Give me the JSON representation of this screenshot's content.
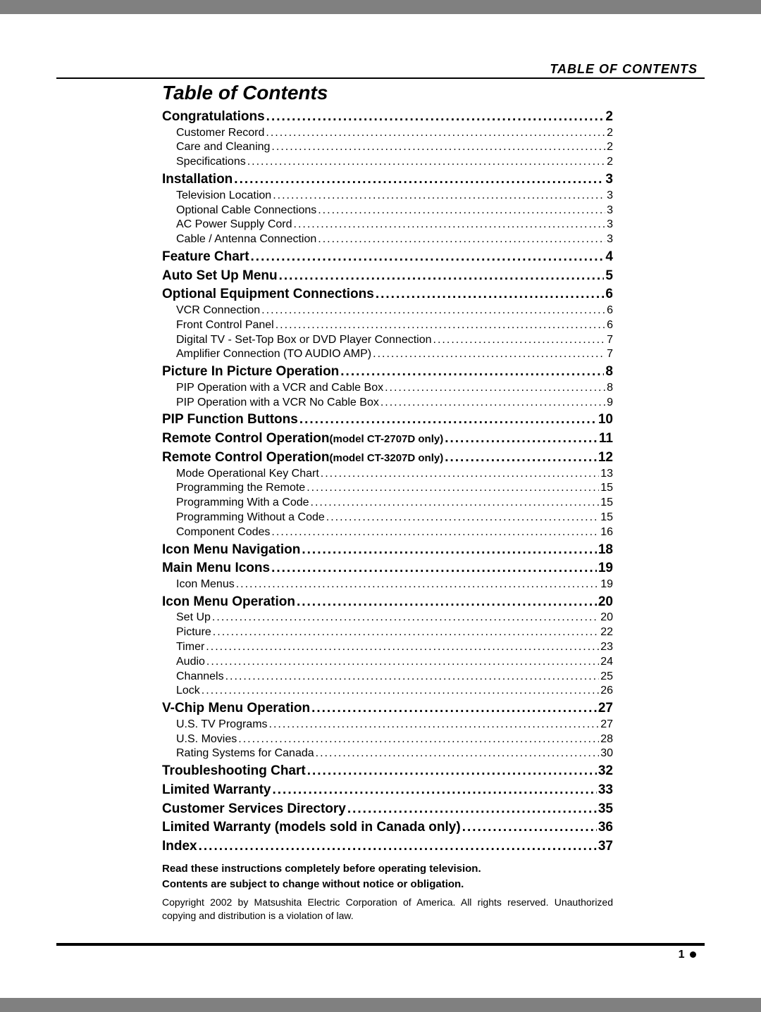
{
  "header_right": "TABLE OF CONTENTS",
  "title": "Table of Contents",
  "entries": [
    {
      "type": "sec",
      "label": "Congratulations",
      "page": "2"
    },
    {
      "type": "sub",
      "label": "Customer Record",
      "page": "2"
    },
    {
      "type": "sub",
      "label": "Care and Cleaning",
      "page": "2"
    },
    {
      "type": "sub",
      "label": "Specifications",
      "page": "2"
    },
    {
      "type": "sec",
      "label": "Installation",
      "page": "3"
    },
    {
      "type": "sub",
      "label": "Television Location",
      "page": "3"
    },
    {
      "type": "sub",
      "label": "Optional Cable Connections",
      "page": "3"
    },
    {
      "type": "sub",
      "label": "AC Power Supply Cord",
      "page": "3"
    },
    {
      "type": "sub",
      "label": "Cable / Antenna Connection",
      "page": "3"
    },
    {
      "type": "sec",
      "label": "Feature Chart",
      "page": "4"
    },
    {
      "type": "sec",
      "label": "Auto Set Up Menu",
      "page": "5"
    },
    {
      "type": "sec",
      "label": "Optional Equipment Connections",
      "page": "6"
    },
    {
      "type": "sub",
      "label": "VCR Connection",
      "page": "6"
    },
    {
      "type": "sub",
      "label": "Front Control Panel",
      "page": "6"
    },
    {
      "type": "sub",
      "label": "Digital TV - Set-Top Box or DVD Player Connection",
      "page": "7"
    },
    {
      "type": "sub",
      "label": "Amplifier Connection (TO AUDIO AMP)",
      "page": "7"
    },
    {
      "type": "sec",
      "label": "Picture In Picture Operation",
      "page": "8"
    },
    {
      "type": "sub",
      "label": "PIP Operation with a VCR and Cable Box",
      "page": "8"
    },
    {
      "type": "sub",
      "label": "PIP Operation with a VCR No Cable Box",
      "page": "9"
    },
    {
      "type": "sec",
      "label": "PIP Function Buttons",
      "page": "10"
    },
    {
      "type": "sec",
      "label": "Remote Control Operation",
      "note": "(model CT-2707D only)",
      "page": "11"
    },
    {
      "type": "sec",
      "label": "Remote Control Operation",
      "note": "(model CT-3207D only)",
      "page": "12"
    },
    {
      "type": "sub",
      "label": "Mode Operational Key Chart",
      "page": "13"
    },
    {
      "type": "sub",
      "label": "Programming the Remote",
      "page": "15"
    },
    {
      "type": "sub",
      "label": "Programming With a Code",
      "page": "15"
    },
    {
      "type": "sub",
      "label": "Programming Without a Code",
      "page": "15"
    },
    {
      "type": "sub",
      "label": "Component Codes",
      "page": "16"
    },
    {
      "type": "sec",
      "label": "Icon Menu Navigation",
      "page": "18"
    },
    {
      "type": "sec",
      "label": "Main Menu Icons",
      "page": "19"
    },
    {
      "type": "sub",
      "label": "Icon Menus",
      "page": "19"
    },
    {
      "type": "sec",
      "label": "Icon Menu Operation",
      "page": "20"
    },
    {
      "type": "sub",
      "label": "Set Up",
      "page": "20"
    },
    {
      "type": "sub",
      "label": "Picture",
      "page": "22"
    },
    {
      "type": "sub",
      "label": "Timer",
      "page": "23"
    },
    {
      "type": "sub",
      "label": "Audio",
      "page": "24"
    },
    {
      "type": "sub",
      "label": "Channels",
      "page": "25"
    },
    {
      "type": "sub",
      "label": "Lock",
      "page": "26"
    },
    {
      "type": "sec",
      "label": "V-Chip Menu Operation",
      "page": "27"
    },
    {
      "type": "sub",
      "label": "U.S. TV Programs",
      "page": "27"
    },
    {
      "type": "sub",
      "label": "U.S. Movies",
      "page": "28"
    },
    {
      "type": "sub",
      "label": "Rating Systems for Canada",
      "page": "30"
    },
    {
      "type": "sec",
      "label": "Troubleshooting Chart",
      "page": "32"
    },
    {
      "type": "sec",
      "label": "Limited Warranty",
      "page": "33"
    },
    {
      "type": "sec",
      "label": "Customer Services Directory",
      "page": "35"
    },
    {
      "type": "sec",
      "label": "Limited Warranty (models sold in Canada only)",
      "page": "36"
    },
    {
      "type": "sec",
      "label": "Index",
      "page": "37"
    }
  ],
  "footer": {
    "note1": "Read these instructions completely before operating television.",
    "note2": "Contents are subject to change without notice or obligation.",
    "copyright": "Copyright 2002 by Matsushita Electric Corporation of America. All rights reserved. Unauthorized copying and distribution is a violation of law."
  },
  "page_number": "1"
}
